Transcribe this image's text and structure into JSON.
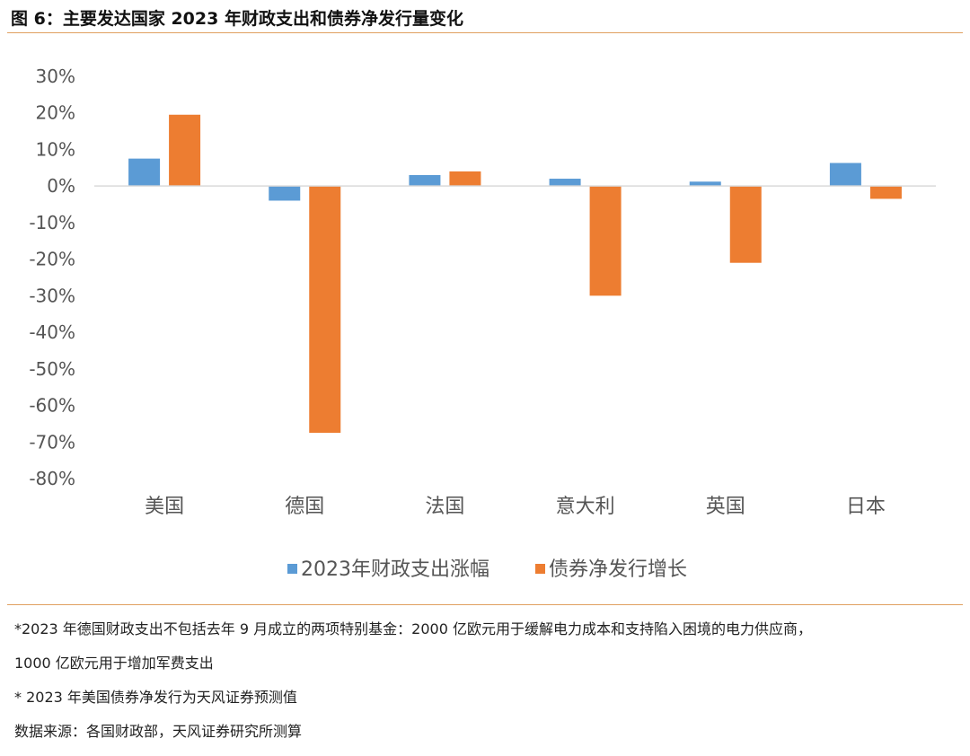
{
  "figure": {
    "title": "图 6：主要发达国家 2023 年财政支出和债券净发行量变化"
  },
  "chart_data": {
    "type": "bar",
    "categories": [
      "美国",
      "德国",
      "法国",
      "意大利",
      "英国",
      "日本"
    ],
    "series": [
      {
        "name": "2023年财政支出涨幅",
        "color": "#5b9bd5",
        "values": [
          7.5,
          -4,
          3,
          2,
          1.2,
          6.3
        ]
      },
      {
        "name": "债券净发行增长",
        "color": "#ed7d31",
        "values": [
          19.5,
          -67.5,
          4,
          -30,
          -21,
          -3.5
        ]
      }
    ],
    "ylim": [
      -80,
      30
    ],
    "yticks": [
      "30%",
      "20%",
      "10%",
      "0%",
      "-10%",
      "-20%",
      "-30%",
      "-40%",
      "-50%",
      "-60%",
      "-70%",
      "-80%"
    ],
    "ytick_values": [
      30,
      20,
      10,
      0,
      -10,
      -20,
      -30,
      -40,
      -50,
      -60,
      -70,
      -80
    ],
    "legend_position": "bottom",
    "grid": false
  },
  "notes": [
    "*2023 年德国财政支出不包括去年 9 月成立的两项特别基金：2000 亿欧元用于缓解电力成本和支持陷入困境的电力供应商，",
    "1000 亿欧元用于增加军费支出",
    "* 2023 年美国债券净发行为天风证券预测值",
    "数据来源：各国财政部，天风证券研究所测算"
  ]
}
